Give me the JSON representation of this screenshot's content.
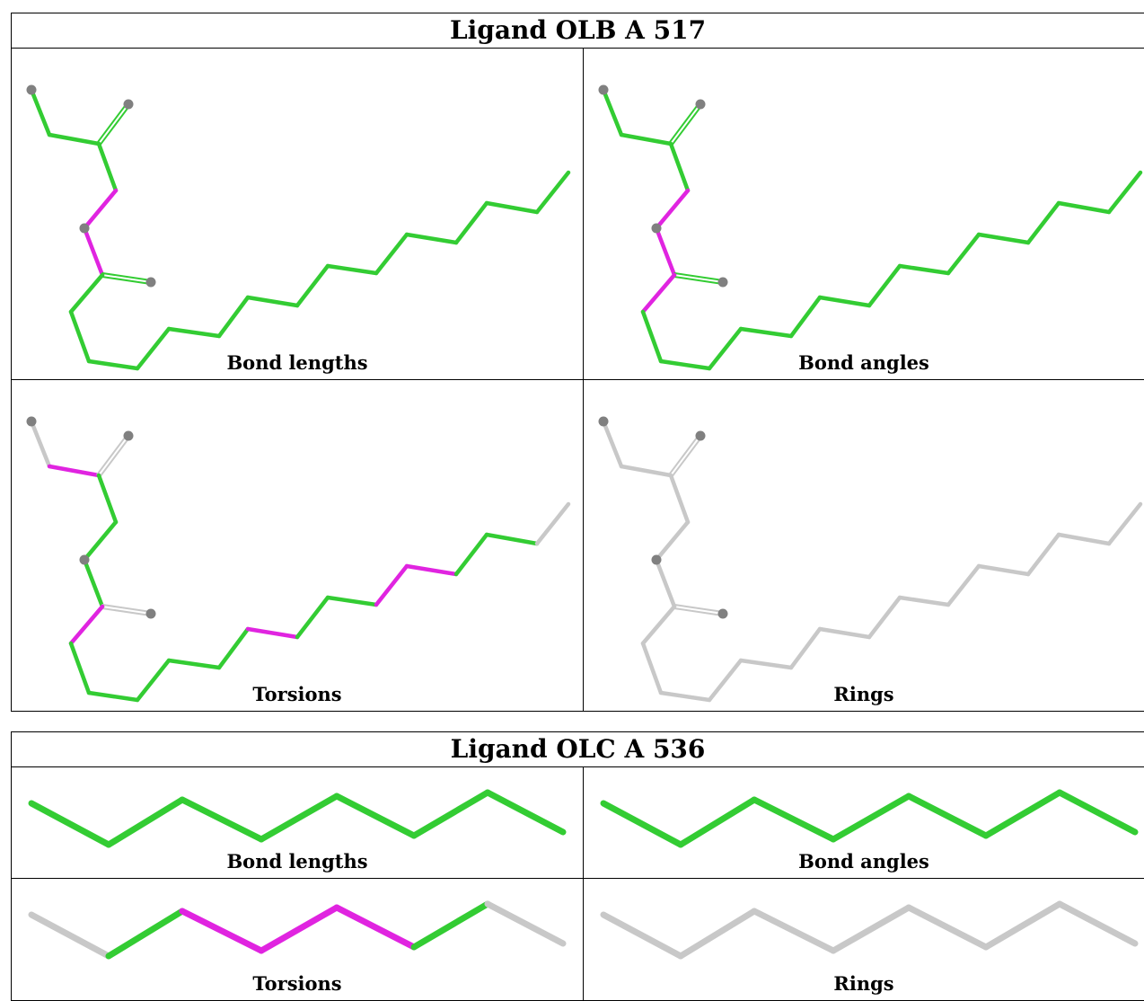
{
  "colors": {
    "ok": "#33cc33",
    "outlier": "#e024e0",
    "neutral": "#c8c8c8",
    "atom": "#808080"
  },
  "ligands": [
    {
      "title": "Ligand OLB A 517",
      "panels": [
        {
          "caption": "Bond lengths"
        },
        {
          "caption": "Bond angles"
        },
        {
          "caption": "Torsions"
        },
        {
          "caption": "Rings"
        }
      ]
    },
    {
      "title": "Ligand OLC A 536",
      "panels": [
        {
          "caption": "Bond lengths"
        },
        {
          "caption": "Bond angles"
        },
        {
          "caption": "Torsions"
        },
        {
          "caption": "Rings"
        }
      ]
    }
  ]
}
